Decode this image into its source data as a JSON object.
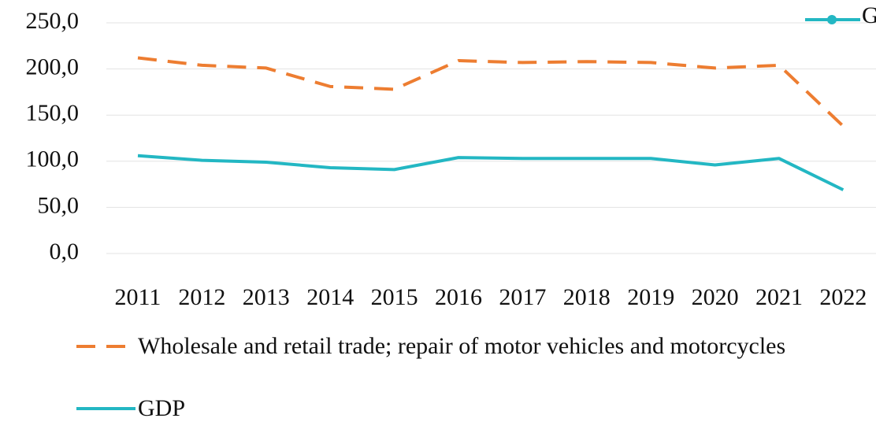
{
  "chart_data": {
    "type": "line",
    "categories": [
      "2011",
      "2012",
      "2013",
      "2014",
      "2015",
      "2016",
      "2017",
      "2018",
      "2019",
      "2020",
      "2021",
      "2022"
    ],
    "series": [
      {
        "name": "Wholesale and retail trade; repair of motor vehicles and motorcycles",
        "color": "#ed7d31",
        "dashed": true,
        "values": [
          212,
          204,
          201,
          181,
          178,
          209,
          207,
          208,
          207,
          201,
          204,
          138
        ]
      },
      {
        "name": "GDP",
        "color": "#23b7c3",
        "dashed": false,
        "values": [
          106,
          101,
          99,
          93,
          91,
          104,
          103,
          103,
          103,
          96,
          103,
          69
        ]
      }
    ],
    "ylim": [
      0,
      250
    ],
    "yticks": [
      {
        "value": 0,
        "label": "0,0"
      },
      {
        "value": 50,
        "label": "50,0"
      },
      {
        "value": 100,
        "label": "100,0"
      },
      {
        "value": 150,
        "label": "150,0"
      },
      {
        "value": 200,
        "label": "200,0"
      },
      {
        "value": 250,
        "label": "250,0"
      }
    ],
    "grid": true
  }
}
